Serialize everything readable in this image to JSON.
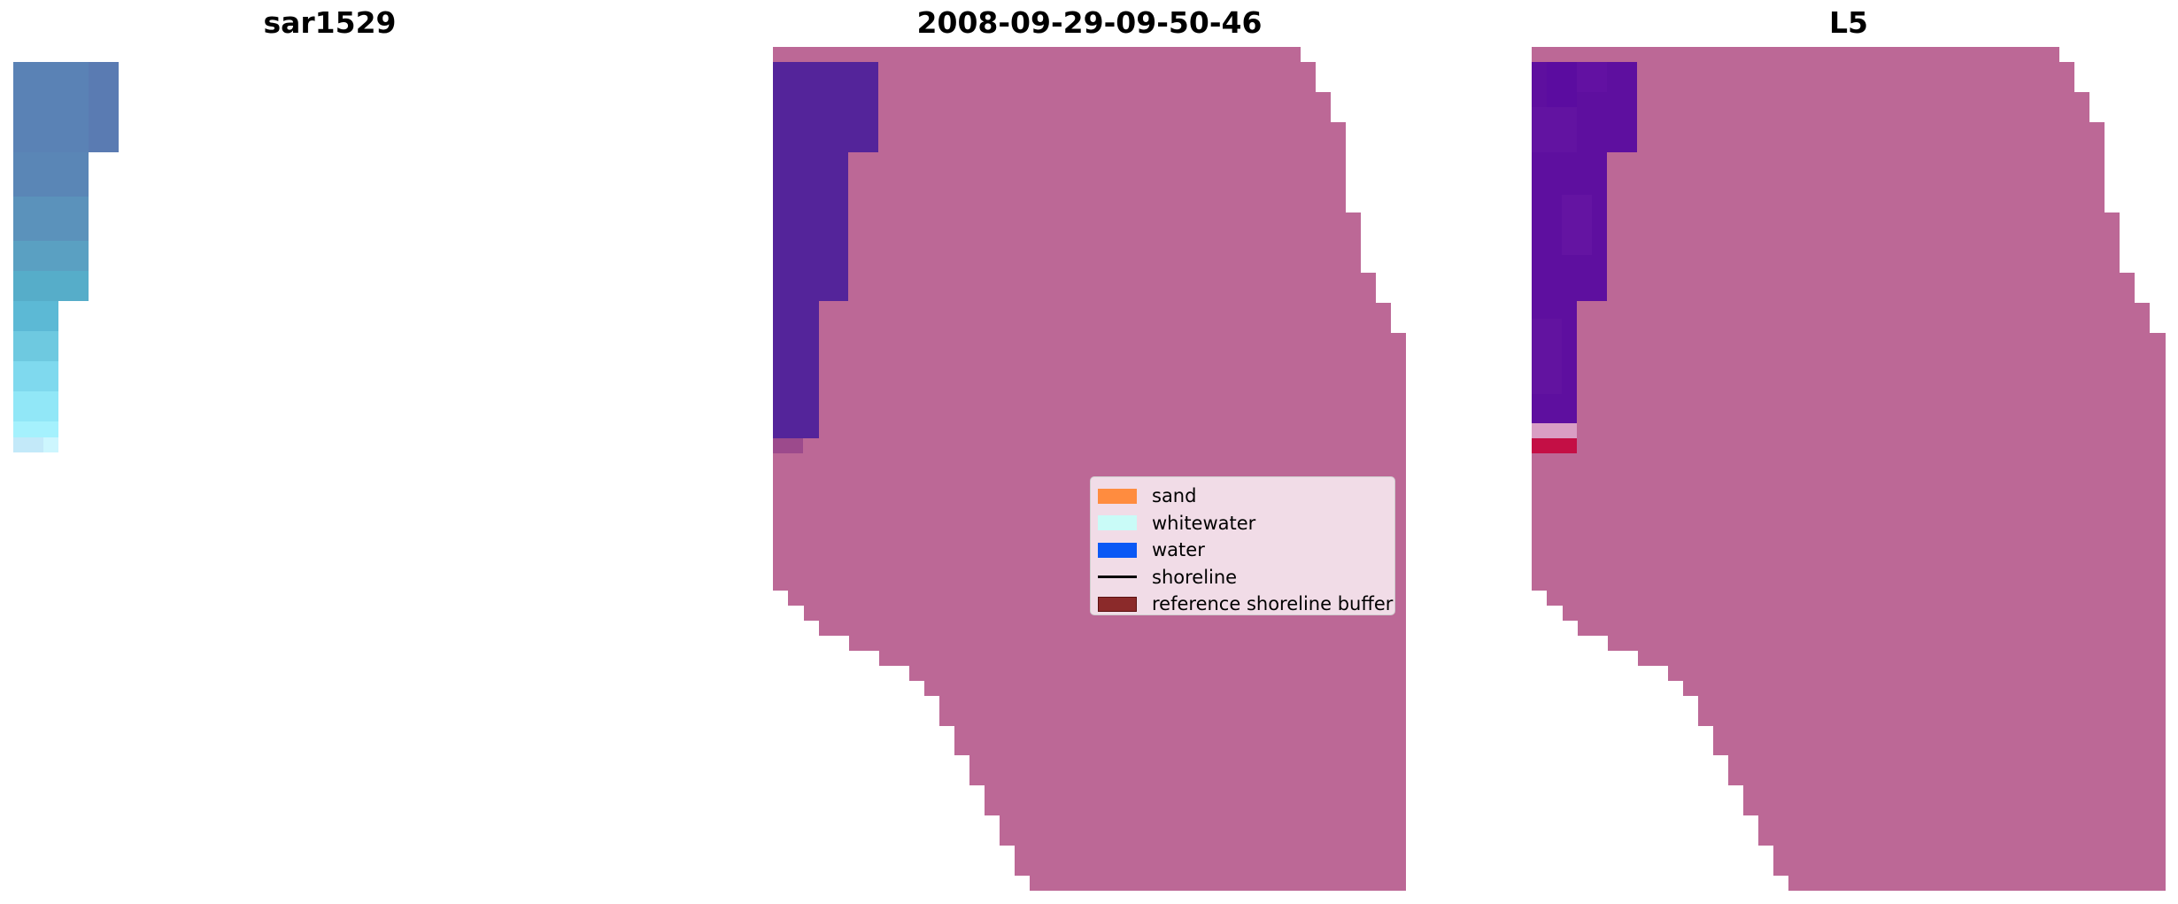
{
  "panels": [
    {
      "title": "sar1529"
    },
    {
      "title": "2008-09-29-09-50-46"
    },
    {
      "title": "L5"
    }
  ],
  "legend": {
    "items": [
      {
        "label": "sand",
        "color": "#ff8c3f",
        "kind": "patch"
      },
      {
        "label": "whitewater",
        "color": "#c9fbf7",
        "kind": "patch"
      },
      {
        "label": "water",
        "color": "#0a58f5",
        "kind": "patch"
      },
      {
        "label": "shoreline",
        "color": "#000000",
        "kind": "line"
      },
      {
        "label": "reference shoreline buffer",
        "color": "#8b2a2a",
        "kind": "patch"
      }
    ]
  },
  "colors": {
    "overlay": "#bc6896",
    "water_class_mask": "#54249a",
    "l5_water_mask": "#5e0f9f",
    "l5_red_row": "#c40f45",
    "rgb_blue_top": "#5a78b0",
    "rgb_light_bottom": "#9ef2fd"
  }
}
